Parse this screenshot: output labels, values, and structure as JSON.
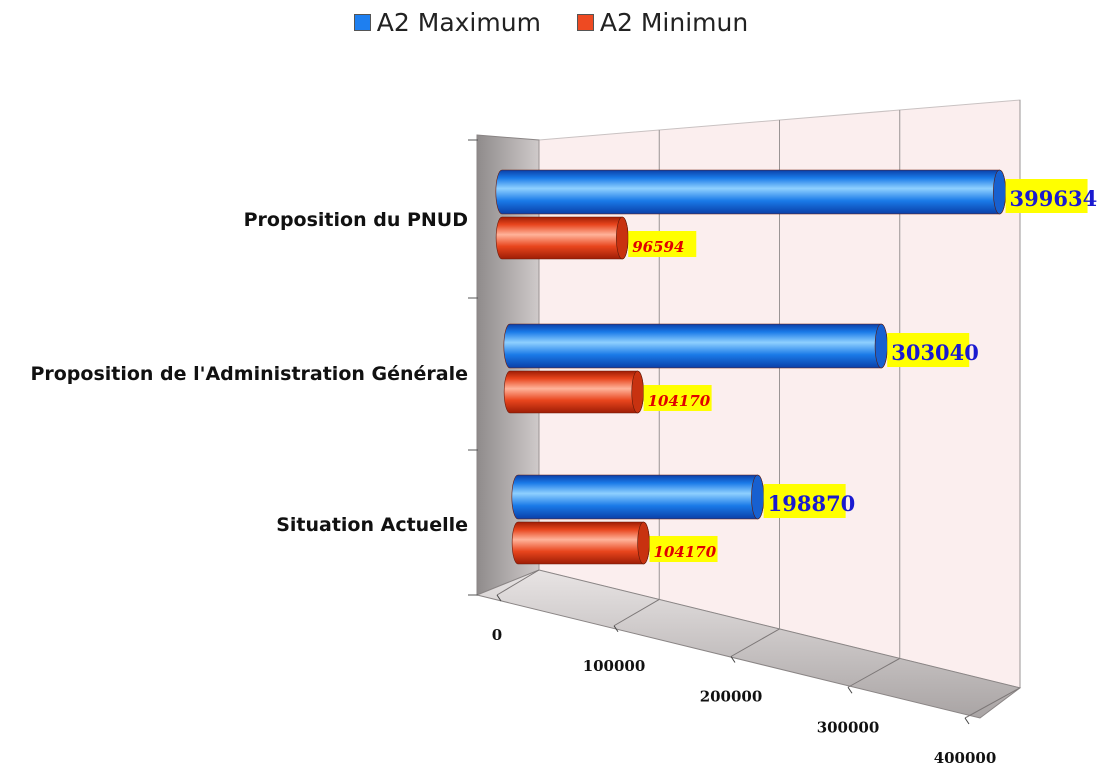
{
  "chart_data": {
    "type": "bar",
    "orientation": "horizontal",
    "style": "3d-cylinder",
    "categories": [
      "Situation Actuelle",
      "Proposition de l'Administration Générale",
      "Proposition du PNUD"
    ],
    "series": [
      {
        "name": "A2 Maximum",
        "values": [
          198870,
          303040,
          399634
        ],
        "color": "#1e7ff0",
        "label_color": "#1a1ad0"
      },
      {
        "name": "A2 Minimun",
        "values": [
          104170,
          104170,
          96594
        ],
        "color": "#ee4a22",
        "label_color": "#e00000"
      }
    ],
    "x_ticks": [
      "0",
      "100000",
      "200000",
      "300000",
      "400000"
    ],
    "xlim": [
      0,
      400000
    ],
    "legend_position": "top",
    "data_label_background": "#ffff00",
    "grid": true
  }
}
